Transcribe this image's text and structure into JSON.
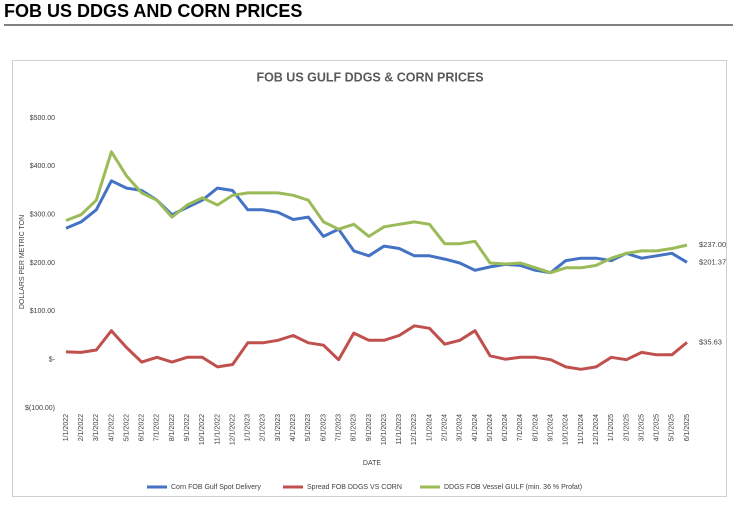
{
  "header": {
    "title": "FOB US DDGS AND CORN PRICES"
  },
  "chart_data": {
    "type": "line",
    "title": "FOB US GULF DDGS & CORN PRICES",
    "x_label": "DATE",
    "y_label": "DOLLARS PER METRIC TON",
    "categories": [
      "1/1/2022",
      "2/1/2022",
      "3/1/2022",
      "4/1/2022",
      "5/1/2022",
      "6/1/2022",
      "7/1/2022",
      "8/1/2022",
      "9/1/2022",
      "10/1/2022",
      "11/1/2022",
      "12/1/2022",
      "1/1/2023",
      "2/1/2023",
      "3/1/2023",
      "4/1/2023",
      "5/1/2023",
      "6/1/2023",
      "7/1/2023",
      "8/1/2023",
      "9/1/2023",
      "10/1/2023",
      "11/1/2023",
      "12/1/2023",
      "1/1/2024",
      "2/1/2024",
      "3/1/2024",
      "4/1/2024",
      "5/1/2024",
      "6/1/2024",
      "7/1/2024",
      "8/1/2024",
      "9/1/2024",
      "10/1/2024",
      "11/1/2024",
      "12/1/2024",
      "1/1/2025",
      "2/1/2025",
      "3/1/2025",
      "4/1/2025",
      "5/1/2025",
      "6/1/2025"
    ],
    "series": [
      {
        "name": "Corn FOB Gulf Spot Delivery",
        "color": "#4472c4",
        "values": [
          272,
          285,
          310,
          370,
          355,
          350,
          330,
          300,
          315,
          330,
          355,
          350,
          310,
          310,
          305,
          290,
          295,
          255,
          270,
          225,
          215,
          235,
          230,
          215,
          215,
          208,
          200,
          185,
          192,
          197,
          195,
          185,
          180,
          205,
          210,
          210,
          205,
          220,
          210,
          215,
          220,
          201.37
        ],
        "value_labels": [
          null,
          null,
          null,
          null,
          null,
          null,
          null,
          null,
          null,
          null,
          null,
          null,
          null,
          null,
          null,
          null,
          null,
          null,
          null,
          null,
          null,
          null,
          null,
          null,
          null,
          null,
          null,
          null,
          null,
          null,
          null,
          null,
          null,
          null,
          null,
          null,
          null,
          null,
          null,
          null,
          null,
          "$201.37"
        ]
      },
      {
        "name": "Spread FOB DDGS VS CORN",
        "color": "#c0504d",
        "values": [
          16,
          15,
          20,
          60,
          25,
          -5,
          5,
          -5,
          5,
          5,
          -15,
          -10,
          35,
          35,
          40,
          50,
          35,
          30,
          0,
          55,
          40,
          40,
          50,
          70,
          65,
          32,
          40,
          60,
          8,
          1,
          5,
          5,
          0,
          -15,
          -20,
          -15,
          5,
          0,
          15,
          10,
          10,
          35.63
        ],
        "value_labels": [
          null,
          null,
          null,
          null,
          null,
          null,
          null,
          null,
          null,
          null,
          null,
          null,
          null,
          null,
          null,
          null,
          null,
          null,
          null,
          null,
          null,
          null,
          null,
          null,
          null,
          null,
          null,
          null,
          null,
          null,
          null,
          null,
          null,
          null,
          null,
          null,
          null,
          null,
          null,
          null,
          null,
          "$35.63"
        ]
      },
      {
        "name": "DDGS FOB Vessel GULF  (min. 36 % Profat)",
        "color": "#9bbb59",
        "values": [
          288,
          300,
          330,
          430,
          380,
          345,
          330,
          295,
          320,
          335,
          320,
          340,
          345,
          345,
          345,
          340,
          330,
          285,
          270,
          280,
          255,
          275,
          280,
          285,
          280,
          240,
          240,
          245,
          200,
          198,
          200,
          190,
          180,
          190,
          190,
          195,
          210,
          220,
          225,
          225,
          230,
          237
        ],
        "value_labels": [
          null,
          null,
          null,
          null,
          null,
          null,
          null,
          null,
          null,
          null,
          null,
          null,
          null,
          null,
          null,
          null,
          null,
          null,
          null,
          null,
          null,
          null,
          null,
          null,
          null,
          null,
          null,
          null,
          null,
          null,
          null,
          null,
          null,
          null,
          null,
          null,
          null,
          null,
          null,
          null,
          null,
          "$237.00"
        ]
      }
    ],
    "ylim": [
      -100,
      500
    ],
    "yticks": [
      {
        "value": -100,
        "label": "$(100.00)"
      },
      {
        "value": 0,
        "label": "$-"
      },
      {
        "value": 100,
        "label": "$100.00"
      },
      {
        "value": 200,
        "label": "$200.00"
      },
      {
        "value": 300,
        "label": "$300.00"
      },
      {
        "value": 400,
        "label": "$400.00"
      },
      {
        "value": 500,
        "label": "$500.00"
      }
    ],
    "legend": "bottom"
  }
}
